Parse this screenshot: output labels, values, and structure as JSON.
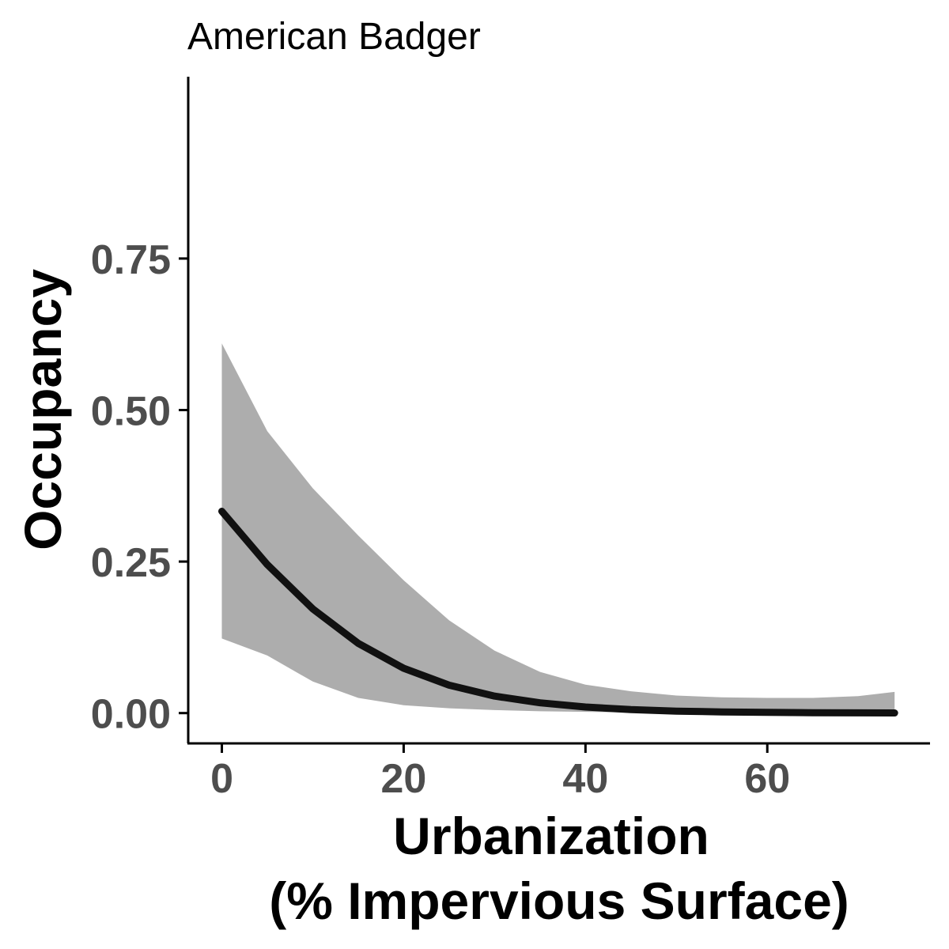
{
  "chart_data": {
    "type": "line",
    "title": "American Badger",
    "xlabel": [
      "Urbanization",
      "(% Impervious Surface)"
    ],
    "ylabel": "Occupancy",
    "xlim": [
      -3.7,
      77.9
    ],
    "ylim": [
      -0.05,
      1.05
    ],
    "x_ticks": [
      0,
      20,
      40,
      60
    ],
    "y_ticks": [
      0,
      0.25,
      0.5,
      0.75
    ],
    "y_tick_labels": [
      "0.00",
      "0.25",
      "0.50",
      "0.75"
    ],
    "grid": false,
    "legend": "none",
    "series": [
      {
        "x": [
          0,
          5,
          10,
          15,
          20,
          25,
          30,
          35,
          40,
          45,
          50,
          55,
          60,
          65,
          70,
          74
        ],
        "y": [
          0.333,
          0.245,
          0.172,
          0.115,
          0.074,
          0.046,
          0.028,
          0.017,
          0.01,
          0.0057,
          0.0033,
          0.0019,
          0.0011,
          0.0006,
          0.0004,
          0.0002
        ],
        "lower": [
          0.123,
          0.095,
          0.052,
          0.025,
          0.013,
          0.008,
          0.005,
          0.003,
          0.002,
          0.001,
          0.001,
          0.0005,
          0.0003,
          0.0002,
          0.0001,
          0.0001
        ],
        "upper": [
          0.61,
          0.465,
          0.371,
          0.293,
          0.219,
          0.153,
          0.103,
          0.068,
          0.047,
          0.036,
          0.029,
          0.026,
          0.025,
          0.025,
          0.028,
          0.035
        ]
      }
    ],
    "colors": {
      "line": "#111111",
      "ribbon": "#adadad",
      "axis": "#000000",
      "tick_label": "#4d4d4d"
    }
  }
}
